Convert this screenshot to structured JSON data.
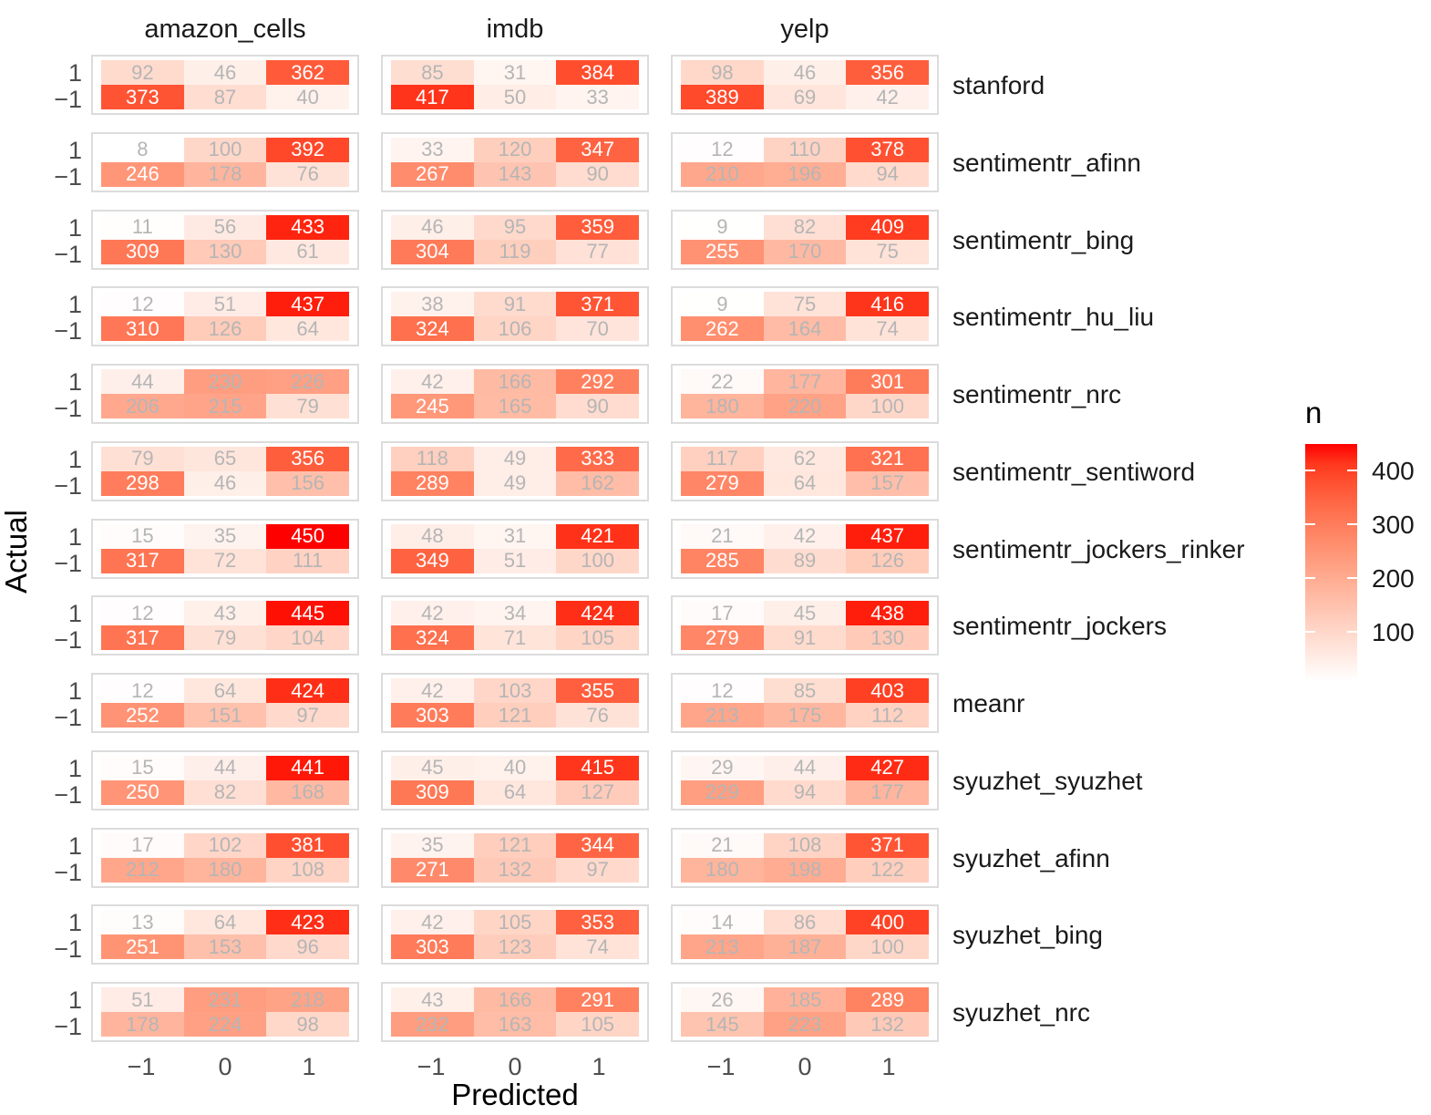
{
  "chart_data": {
    "type": "heatmap",
    "title": "",
    "xlabel": "Predicted",
    "ylabel": "Actual",
    "x_categories": [
      "−1",
      "0",
      "1"
    ],
    "y_categories": [
      "1",
      "−1"
    ],
    "facet_cols": [
      "amazon_cells",
      "imdb",
      "yelp"
    ],
    "facet_rows": [
      "stanford",
      "sentimentr_afinn",
      "sentimentr_bing",
      "sentimentr_hu_liu",
      "sentimentr_nrc",
      "sentimentr_sentiword",
      "sentimentr_jockers_rinker",
      "sentimentr_jockers",
      "meanr",
      "syuzhet_syuzhet",
      "syuzhet_afinn",
      "syuzhet_bing",
      "syuzhet_nrc"
    ],
    "cell_value_note": "values[method][dataset] = rows [Actual=1, Actual=-1] x cols [Pred=-1, Pred=0, Pred=1]",
    "values": [
      [
        [
          [
            92,
            46,
            362
          ],
          [
            373,
            87,
            40
          ]
        ],
        [
          [
            85,
            31,
            384
          ],
          [
            417,
            50,
            33
          ]
        ],
        [
          [
            98,
            46,
            356
          ],
          [
            389,
            69,
            42
          ]
        ]
      ],
      [
        [
          [
            8,
            100,
            392
          ],
          [
            246,
            178,
            76
          ]
        ],
        [
          [
            33,
            120,
            347
          ],
          [
            267,
            143,
            90
          ]
        ],
        [
          [
            12,
            110,
            378
          ],
          [
            210,
            196,
            94
          ]
        ]
      ],
      [
        [
          [
            11,
            56,
            433
          ],
          [
            309,
            130,
            61
          ]
        ],
        [
          [
            46,
            95,
            359
          ],
          [
            304,
            119,
            77
          ]
        ],
        [
          [
            9,
            82,
            409
          ],
          [
            255,
            170,
            75
          ]
        ]
      ],
      [
        [
          [
            12,
            51,
            437
          ],
          [
            310,
            126,
            64
          ]
        ],
        [
          [
            38,
            91,
            371
          ],
          [
            324,
            106,
            70
          ]
        ],
        [
          [
            9,
            75,
            416
          ],
          [
            262,
            164,
            74
          ]
        ]
      ],
      [
        [
          [
            44,
            230,
            226
          ],
          [
            206,
            215,
            79
          ]
        ],
        [
          [
            42,
            166,
            292
          ],
          [
            245,
            165,
            90
          ]
        ],
        [
          [
            22,
            177,
            301
          ],
          [
            180,
            220,
            100
          ]
        ]
      ],
      [
        [
          [
            79,
            65,
            356
          ],
          [
            298,
            46,
            156
          ]
        ],
        [
          [
            118,
            49,
            333
          ],
          [
            289,
            49,
            162
          ]
        ],
        [
          [
            117,
            62,
            321
          ],
          [
            279,
            64,
            157
          ]
        ]
      ],
      [
        [
          [
            15,
            35,
            450
          ],
          [
            317,
            72,
            111
          ]
        ],
        [
          [
            48,
            31,
            421
          ],
          [
            349,
            51,
            100
          ]
        ],
        [
          [
            21,
            42,
            437
          ],
          [
            285,
            89,
            126
          ]
        ]
      ],
      [
        [
          [
            12,
            43,
            445
          ],
          [
            317,
            79,
            104
          ]
        ],
        [
          [
            42,
            34,
            424
          ],
          [
            324,
            71,
            105
          ]
        ],
        [
          [
            17,
            45,
            438
          ],
          [
            279,
            91,
            130
          ]
        ]
      ],
      [
        [
          [
            12,
            64,
            424
          ],
          [
            252,
            151,
            97
          ]
        ],
        [
          [
            42,
            103,
            355
          ],
          [
            303,
            121,
            76
          ]
        ],
        [
          [
            12,
            85,
            403
          ],
          [
            213,
            175,
            112
          ]
        ]
      ],
      [
        [
          [
            15,
            44,
            441
          ],
          [
            250,
            82,
            168
          ]
        ],
        [
          [
            45,
            40,
            415
          ],
          [
            309,
            64,
            127
          ]
        ],
        [
          [
            29,
            44,
            427
          ],
          [
            229,
            94,
            177
          ]
        ]
      ],
      [
        [
          [
            17,
            102,
            381
          ],
          [
            212,
            180,
            108
          ]
        ],
        [
          [
            35,
            121,
            344
          ],
          [
            271,
            132,
            97
          ]
        ],
        [
          [
            21,
            108,
            371
          ],
          [
            180,
            198,
            122
          ]
        ]
      ],
      [
        [
          [
            13,
            64,
            423
          ],
          [
            251,
            153,
            96
          ]
        ],
        [
          [
            42,
            105,
            353
          ],
          [
            303,
            123,
            74
          ]
        ],
        [
          [
            14,
            86,
            400
          ],
          [
            213,
            187,
            100
          ]
        ]
      ],
      [
        [
          [
            51,
            231,
            218
          ],
          [
            178,
            224,
            98
          ]
        ],
        [
          [
            43,
            166,
            291
          ],
          [
            232,
            163,
            105
          ]
        ],
        [
          [
            26,
            185,
            289
          ],
          [
            145,
            223,
            132
          ]
        ]
      ]
    ],
    "legend": {
      "title": "n",
      "ticks": [
        100,
        200,
        300,
        400
      ],
      "domain": [
        8,
        450
      ],
      "low_color": "#FFFFFF",
      "high_color": "#FF0000"
    },
    "layout": {
      "grid_on": false,
      "legend_position": "right",
      "colors": {
        "panel_border": "#dcdcdc",
        "cell_text_low": "#b5b5b5",
        "cell_text_high": "#ffffff",
        "axis_text": "#4d4d4d"
      }
    }
  }
}
